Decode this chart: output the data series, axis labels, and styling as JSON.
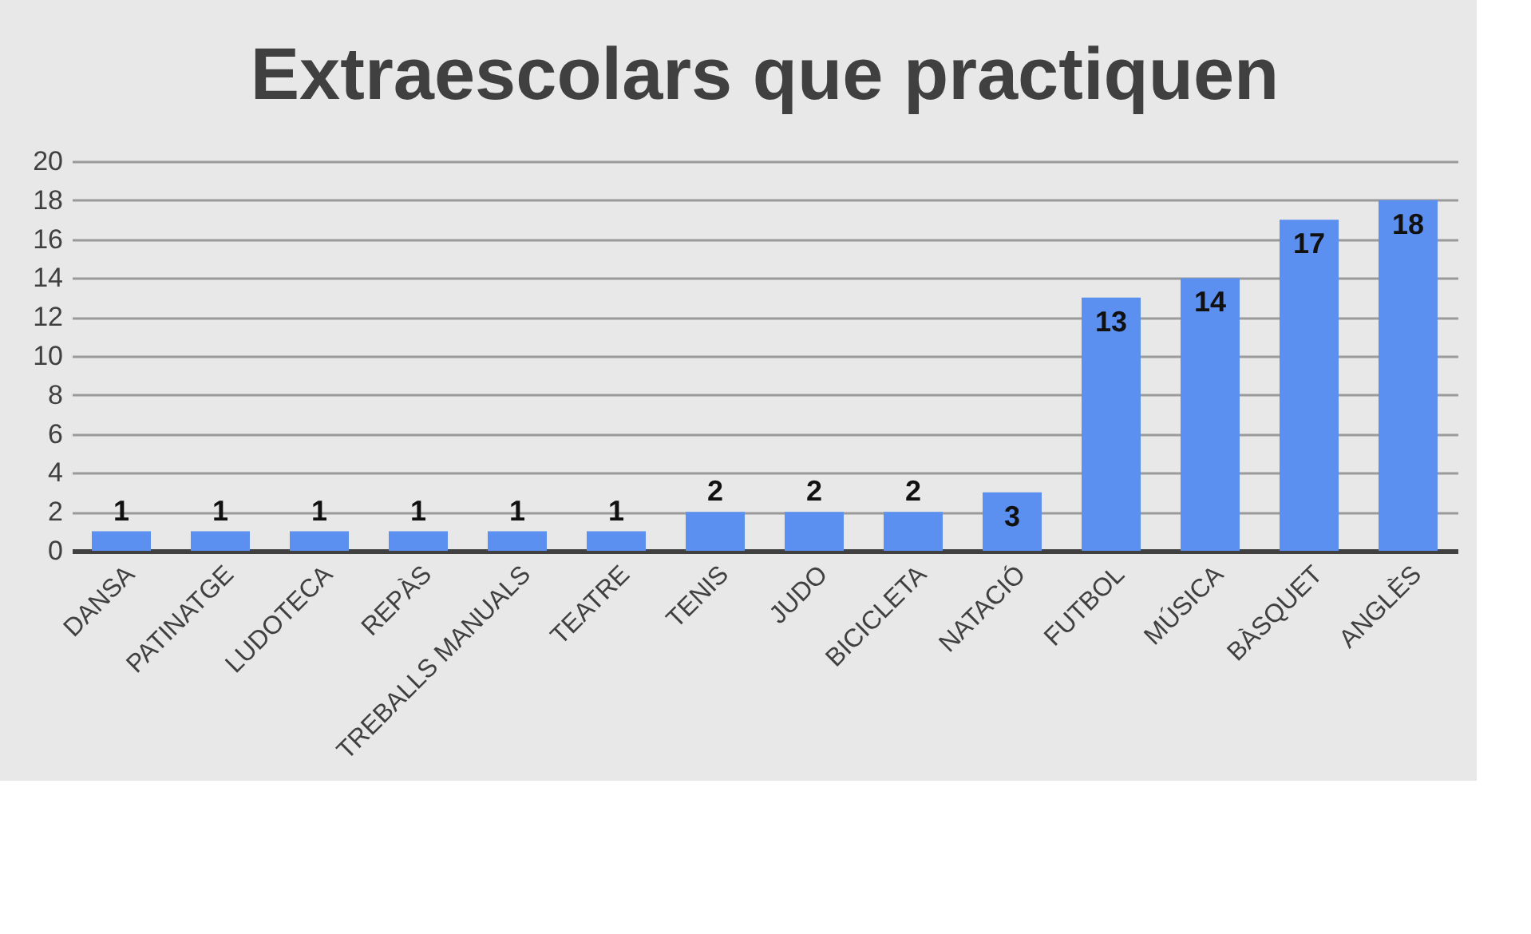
{
  "chart_data": {
    "type": "bar",
    "title": "Extraescolars que practiquen",
    "categories": [
      "DANSA",
      "PATINATGE",
      "LUDOTECA",
      "REPÀS",
      "TREBALLS MANUALS",
      "TEATRE",
      "TENIS",
      "JUDO",
      "BICICLETA",
      "NATACIÓ",
      "FUTBOL",
      "MÚSICA",
      "BÀSQUET",
      "ANGLÈS"
    ],
    "values": [
      1,
      1,
      1,
      1,
      1,
      1,
      2,
      2,
      2,
      3,
      13,
      14,
      17,
      18
    ],
    "color": "#5b8ff0",
    "ylim": [
      0,
      20
    ],
    "yticks": [
      0,
      2,
      4,
      6,
      8,
      10,
      12,
      14,
      16,
      18,
      20
    ],
    "grid": "y",
    "data_labels": true
  }
}
